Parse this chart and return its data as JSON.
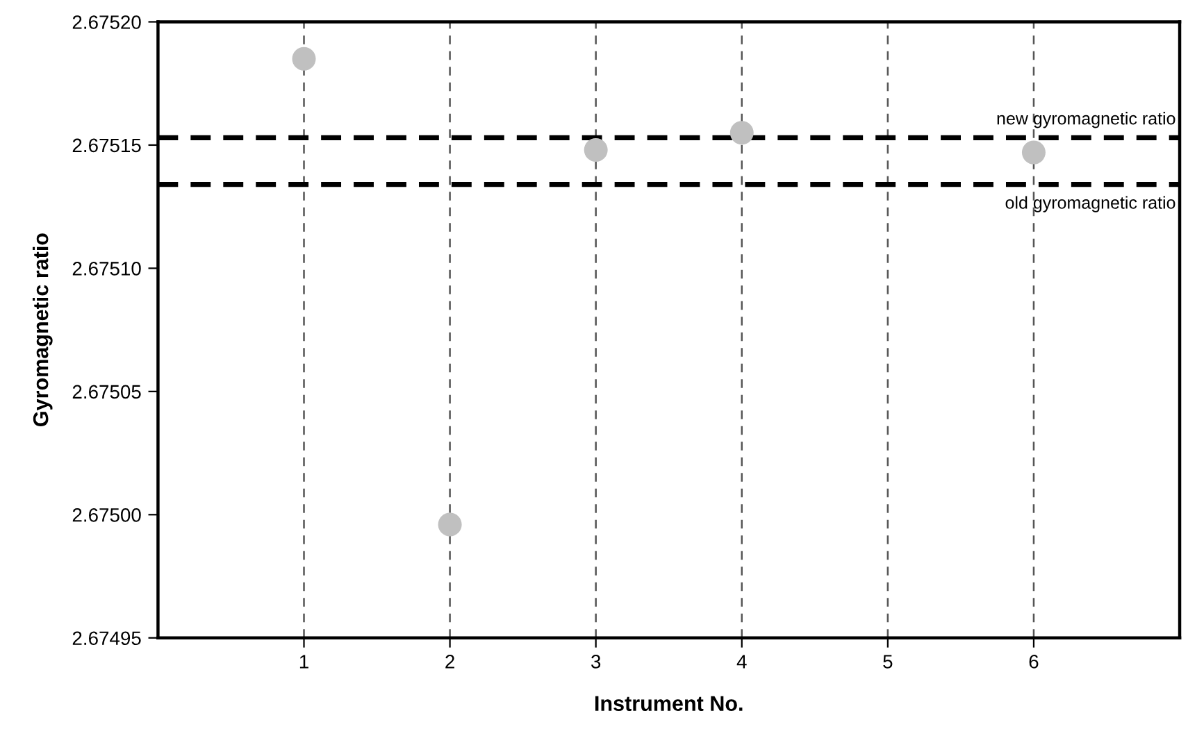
{
  "chart_data": {
    "type": "scatter",
    "xlabel": "Instrument No.",
    "ylabel": "Gyromagnetic ratio",
    "x": [
      1,
      2,
      3,
      4,
      6
    ],
    "series": [
      {
        "color": "#c0c0c0",
        "values": [
          2.675185,
          2.674996,
          2.675148,
          2.675155,
          2.675147
        ]
      }
    ],
    "marker": "circle",
    "xlim": [
      0,
      7
    ],
    "xticks": [
      1,
      2,
      3,
      4,
      5,
      6
    ],
    "ylim": [
      2.67495,
      2.6752
    ],
    "yticks": [
      {
        "value": 2.67495,
        "label": "2.67495"
      },
      {
        "value": 2.675,
        "label": "2.67500"
      },
      {
        "value": 2.67505,
        "label": "2.67505"
      },
      {
        "value": 2.6751,
        "label": "2.67510"
      },
      {
        "value": 2.67515,
        "label": "2.67515"
      },
      {
        "value": 2.6752,
        "label": "2.67520"
      }
    ],
    "grid": "x",
    "ref_lines": [
      {
        "axis": "y",
        "value": 2.675153,
        "label": "new gyromagnetic ratio",
        "color": "#000000",
        "line_style": "dashed"
      },
      {
        "axis": "y",
        "value": 2.675134,
        "label": "old gyromagnetic ratio",
        "color": "#000000",
        "line_style": "dashed"
      }
    ]
  }
}
